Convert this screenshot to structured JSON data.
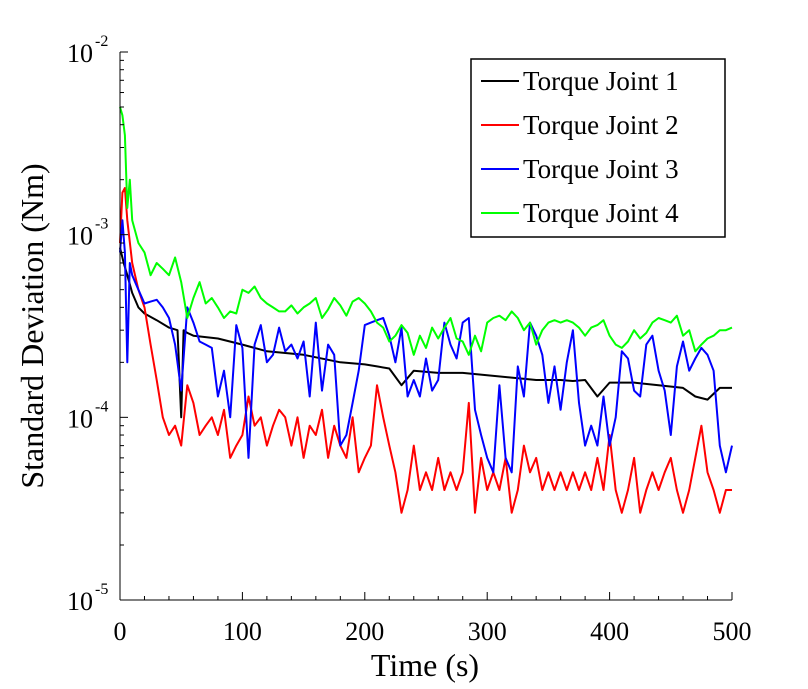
{
  "chart_data": {
    "type": "line",
    "xlabel": "Time (s)",
    "ylabel": "Standard Deviation (Nm)",
    "xlim": [
      0,
      500
    ],
    "ylim": [
      1e-05,
      0.01
    ],
    "yscale": "log",
    "grid": false,
    "legend_position": "top-right",
    "x_ticks": [
      "0",
      "100",
      "200",
      "300",
      "400",
      "500"
    ],
    "y_ticks": [
      {
        "base": "10",
        "exp": "-5",
        "value": 1e-05
      },
      {
        "base": "10",
        "exp": "-4",
        "value": 0.0001
      },
      {
        "base": "10",
        "exp": "-3",
        "value": 0.001
      },
      {
        "base": "10",
        "exp": "-2",
        "value": 0.01
      }
    ],
    "series": [
      {
        "name": "Torque Joint 1",
        "color": "#000000",
        "x": [
          0,
          3,
          6,
          10,
          15,
          20,
          30,
          40,
          47,
          50,
          52,
          55,
          60,
          80,
          100,
          120,
          150,
          180,
          200,
          210,
          220,
          230,
          240,
          260,
          280,
          300,
          320,
          340,
          360,
          370,
          380,
          390,
          400,
          420,
          440,
          460,
          470,
          480,
          490,
          500
        ],
        "y": [
          0.00085,
          0.0007,
          0.0006,
          0.00048,
          0.0004,
          0.00037,
          0.00034,
          0.00031,
          0.0003,
          0.0001,
          0.0003,
          0.00029,
          0.00028,
          0.00027,
          0.00025,
          0.00023,
          0.00022,
          0.0002,
          0.000195,
          0.00019,
          0.000185,
          0.00015,
          0.00018,
          0.000175,
          0.000175,
          0.00017,
          0.000165,
          0.00016,
          0.00016,
          0.000158,
          0.00016,
          0.00013,
          0.000155,
          0.000155,
          0.00015,
          0.000145,
          0.00013,
          0.000125,
          0.000145,
          0.000145
        ]
      },
      {
        "name": "Torque Joint 2",
        "color": "#ff0000",
        "x": [
          0,
          2,
          4,
          6,
          10,
          15,
          20,
          25,
          30,
          35,
          40,
          45,
          50,
          55,
          60,
          65,
          70,
          75,
          80,
          85,
          90,
          95,
          100,
          105,
          110,
          115,
          120,
          125,
          130,
          135,
          140,
          145,
          150,
          155,
          160,
          165,
          170,
          175,
          180,
          185,
          190,
          195,
          200,
          205,
          210,
          215,
          220,
          225,
          230,
          235,
          240,
          245,
          250,
          255,
          260,
          265,
          270,
          275,
          280,
          285,
          290,
          295,
          300,
          305,
          310,
          315,
          320,
          325,
          330,
          335,
          340,
          345,
          350,
          355,
          360,
          365,
          370,
          375,
          380,
          385,
          390,
          395,
          400,
          405,
          410,
          415,
          420,
          425,
          430,
          435,
          440,
          445,
          450,
          455,
          460,
          465,
          470,
          475,
          480,
          485,
          490,
          495,
          500
        ],
        "y": [
          0.0009,
          0.0017,
          0.0018,
          0.0012,
          0.0007,
          0.0005,
          0.0004,
          0.00025,
          0.00016,
          0.0001,
          8e-05,
          9e-05,
          7e-05,
          0.00015,
          0.00012,
          8e-05,
          9e-05,
          0.0001,
          8e-05,
          0.00011,
          6e-05,
          7e-05,
          8e-05,
          0.00013,
          9e-05,
          0.0001,
          7e-05,
          9e-05,
          0.00011,
          0.0001,
          7e-05,
          0.0001,
          6e-05,
          9e-05,
          8e-05,
          0.00011,
          6e-05,
          9e-05,
          7e-05,
          6e-05,
          0.0001,
          5e-05,
          6e-05,
          7e-05,
          0.00015,
          0.0001,
          7e-05,
          5e-05,
          3e-05,
          4e-05,
          7e-05,
          4e-05,
          5e-05,
          4e-05,
          6e-05,
          4e-05,
          5e-05,
          4e-05,
          5e-05,
          0.00012,
          3e-05,
          6e-05,
          4e-05,
          5e-05,
          4e-05,
          6e-05,
          3e-05,
          4e-05,
          7e-05,
          5e-05,
          6e-05,
          4e-05,
          5e-05,
          4e-05,
          5e-05,
          4e-05,
          5e-05,
          4e-05,
          5e-05,
          4e-05,
          6e-05,
          4e-05,
          8e-05,
          4e-05,
          3e-05,
          4e-05,
          6e-05,
          3e-05,
          4e-05,
          5e-05,
          4e-05,
          5e-05,
          6e-05,
          4e-05,
          3e-05,
          4e-05,
          6e-05,
          9e-05,
          5e-05,
          4e-05,
          3e-05,
          4e-05,
          4e-05
        ]
      },
      {
        "name": "Torque Joint 3",
        "color": "#0000ff",
        "x": [
          0,
          2,
          4,
          6,
          8,
          10,
          15,
          20,
          25,
          30,
          35,
          40,
          45,
          50,
          55,
          60,
          65,
          70,
          75,
          80,
          85,
          90,
          95,
          100,
          105,
          110,
          115,
          120,
          125,
          130,
          135,
          140,
          145,
          150,
          155,
          160,
          165,
          170,
          175,
          180,
          185,
          190,
          195,
          200,
          205,
          210,
          215,
          220,
          225,
          230,
          235,
          240,
          245,
          250,
          255,
          260,
          265,
          270,
          275,
          280,
          285,
          290,
          295,
          300,
          305,
          310,
          315,
          320,
          325,
          330,
          335,
          340,
          345,
          350,
          355,
          360,
          365,
          370,
          375,
          380,
          385,
          390,
          395,
          400,
          405,
          410,
          415,
          420,
          425,
          430,
          435,
          440,
          445,
          450,
          455,
          460,
          465,
          470,
          475,
          480,
          485,
          490,
          495,
          500
        ],
        "y": [
          0.0008,
          0.0012,
          0.0008,
          0.0002,
          0.0007,
          0.0006,
          0.0005,
          0.00042,
          0.00043,
          0.00044,
          0.0004,
          0.00035,
          0.00025,
          0.00014,
          0.0004,
          0.00033,
          0.00026,
          0.00025,
          0.00024,
          0.00013,
          0.00018,
          0.0001,
          0.00032,
          0.00024,
          6e-05,
          0.00025,
          0.00032,
          0.0002,
          0.00022,
          0.00031,
          0.00023,
          0.00025,
          0.00021,
          0.00026,
          0.00013,
          0.00033,
          0.00014,
          0.00025,
          0.00022,
          7e-05,
          8e-05,
          0.00012,
          0.00018,
          0.00032,
          0.00033,
          0.00034,
          0.00035,
          0.00028,
          0.0002,
          0.00031,
          0.00013,
          0.00016,
          0.00013,
          0.00021,
          0.00014,
          0.00016,
          0.00033,
          0.00025,
          0.00021,
          0.00033,
          0.00035,
          0.00011,
          8e-05,
          6e-05,
          5e-05,
          0.00015,
          6e-05,
          5e-05,
          0.00019,
          0.00013,
          0.00033,
          0.00028,
          0.00022,
          0.00012,
          0.00019,
          0.00011,
          0.0002,
          0.0003,
          0.00012,
          7e-05,
          9e-05,
          7e-05,
          0.00013,
          7e-05,
          0.0001,
          0.00023,
          0.00021,
          0.00014,
          0.00013,
          0.00025,
          0.00028,
          0.00018,
          0.00014,
          8e-05,
          0.00019,
          0.00026,
          0.00018,
          0.00021,
          0.00024,
          0.00022,
          0.00018,
          7e-05,
          5e-05,
          7e-05
        ]
      },
      {
        "name": "Torque Joint 4",
        "color": "#00ff00",
        "x": [
          0,
          2,
          4,
          6,
          8,
          10,
          15,
          20,
          25,
          30,
          35,
          40,
          45,
          50,
          55,
          60,
          65,
          70,
          75,
          80,
          85,
          90,
          95,
          100,
          105,
          110,
          115,
          120,
          125,
          130,
          135,
          140,
          145,
          150,
          155,
          160,
          165,
          170,
          175,
          180,
          185,
          190,
          195,
          200,
          205,
          210,
          215,
          220,
          225,
          230,
          235,
          240,
          245,
          250,
          255,
          260,
          265,
          270,
          275,
          280,
          285,
          290,
          295,
          300,
          305,
          310,
          315,
          320,
          325,
          330,
          335,
          340,
          345,
          350,
          355,
          360,
          365,
          370,
          375,
          380,
          385,
          390,
          395,
          400,
          405,
          410,
          415,
          420,
          425,
          430,
          435,
          440,
          445,
          450,
          455,
          460,
          465,
          470,
          475,
          480,
          485,
          490,
          495,
          500
        ],
        "y": [
          0.005,
          0.0045,
          0.0035,
          0.0014,
          0.002,
          0.0012,
          0.0009,
          0.0008,
          0.0006,
          0.0007,
          0.00065,
          0.0006,
          0.00075,
          0.00055,
          0.00035,
          0.00045,
          0.00055,
          0.00042,
          0.00045,
          0.0004,
          0.00035,
          0.00038,
          0.00037,
          0.0005,
          0.00048,
          0.00052,
          0.00045,
          0.00042,
          0.0004,
          0.00038,
          0.00038,
          0.00041,
          0.00037,
          0.0004,
          0.00042,
          0.00045,
          0.00035,
          0.00039,
          0.00045,
          0.00041,
          0.00036,
          0.00043,
          0.00045,
          0.00042,
          0.00038,
          0.00033,
          0.00031,
          0.00026,
          0.00028,
          0.00032,
          0.00029,
          0.00022,
          0.00028,
          0.00024,
          0.00031,
          0.00027,
          0.00031,
          0.00035,
          0.00027,
          0.00026,
          0.00022,
          0.00028,
          0.00023,
          0.00033,
          0.00035,
          0.00036,
          0.00034,
          0.00038,
          0.00035,
          0.0003,
          0.00033,
          0.00025,
          0.0003,
          0.00033,
          0.00034,
          0.00033,
          0.00034,
          0.00033,
          0.00031,
          0.00028,
          0.00031,
          0.00032,
          0.00034,
          0.00028,
          0.00025,
          0.00024,
          0.00026,
          0.0003,
          0.00027,
          0.00029,
          0.00033,
          0.00035,
          0.00034,
          0.00033,
          0.00036,
          0.00028,
          0.0003,
          0.00023,
          0.00025,
          0.00027,
          0.00028,
          0.0003,
          0.0003,
          0.00031
        ]
      }
    ]
  }
}
